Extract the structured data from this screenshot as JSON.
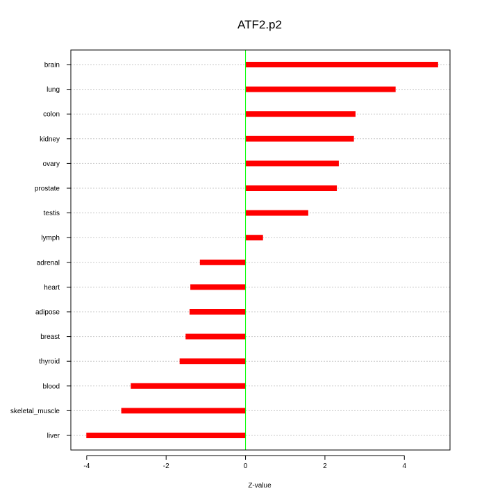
{
  "chart_data": {
    "type": "bar",
    "orientation": "horizontal",
    "title": "ATF2.p2",
    "xlabel": "Z-value",
    "ylabel": "",
    "xlim": [
      -4.4,
      5.15
    ],
    "x_ticks": [
      -4,
      -2,
      0,
      2,
      4
    ],
    "x_tick_labels": [
      "-4",
      "-2",
      "0",
      "2",
      "4"
    ],
    "categories": [
      "brain",
      "lung",
      "colon",
      "kidney",
      "ovary",
      "prostate",
      "testis",
      "lymph",
      "adrenal",
      "heart",
      "adipose",
      "breast",
      "thyroid",
      "blood",
      "skeletal_muscle",
      "liver"
    ],
    "values": [
      4.85,
      3.78,
      2.77,
      2.73,
      2.35,
      2.3,
      1.58,
      0.44,
      -1.15,
      -1.39,
      -1.41,
      -1.51,
      -1.66,
      -2.89,
      -3.13,
      -4.01
    ],
    "grid": true,
    "bar_color": "#ff0000",
    "zero_line_color": "#00ff00",
    "grid_color": "#c8c8c8"
  }
}
